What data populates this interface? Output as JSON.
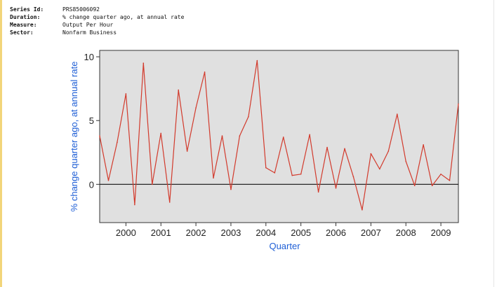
{
  "metadata": {
    "rows": [
      {
        "key": "Series Id:",
        "value": "PRS85006092"
      },
      {
        "key": "Duration:",
        "value": "% change quarter ago, at annual rate"
      },
      {
        "key": "Measure:",
        "value": "Output Per Hour"
      },
      {
        "key": "Sector:",
        "value": "Nonfarm Business"
      }
    ]
  },
  "chart_data": {
    "type": "line",
    "title": "",
    "xlabel": "Quarter",
    "ylabel": "% change quarter ago, at annual rate",
    "xlim": [
      1999.25,
      2009.5
    ],
    "ylim": [
      -3,
      10.5
    ],
    "x_ticks": [
      2000,
      2001,
      2002,
      2003,
      2004,
      2005,
      2006,
      2007,
      2008,
      2009
    ],
    "y_ticks": [
      0,
      5,
      10
    ],
    "grid": false,
    "zero_line": true,
    "colors": {
      "line": "#d23a2c",
      "plot_bg": "#e0e0e0",
      "axis_title": "#1f5fd6"
    },
    "series": [
      {
        "x": [
          1999.25,
          1999.5,
          1999.75,
          2000.0,
          2000.25,
          2000.5,
          2000.75,
          2001.0,
          2001.25,
          2001.5,
          2001.75,
          2002.0,
          2002.25,
          2002.5,
          2002.75,
          2003.0,
          2003.25,
          2003.5,
          2003.75,
          2004.0,
          2004.25,
          2004.5,
          2004.75,
          2005.0,
          2005.25,
          2005.5,
          2005.75,
          2006.0,
          2006.25,
          2006.5,
          2006.75,
          2007.0,
          2007.25,
          2007.5,
          2007.75,
          2008.0,
          2008.25,
          2008.5,
          2008.75,
          2009.0,
          2009.25,
          2009.5
        ],
        "values": [
          3.8,
          0.3,
          3.3,
          7.1,
          -1.6,
          9.5,
          0.0,
          4.0,
          -1.4,
          7.4,
          2.6,
          6.0,
          8.8,
          0.5,
          3.8,
          -0.4,
          3.8,
          5.3,
          9.7,
          1.3,
          0.9,
          3.7,
          0.7,
          0.8,
          3.9,
          -0.6,
          2.9,
          -0.3,
          2.8,
          0.6,
          -2.0,
          2.4,
          1.2,
          2.6,
          5.5,
          1.8,
          -0.1,
          3.1,
          -0.1,
          0.8,
          0.3,
          6.3
        ]
      }
    ]
  }
}
